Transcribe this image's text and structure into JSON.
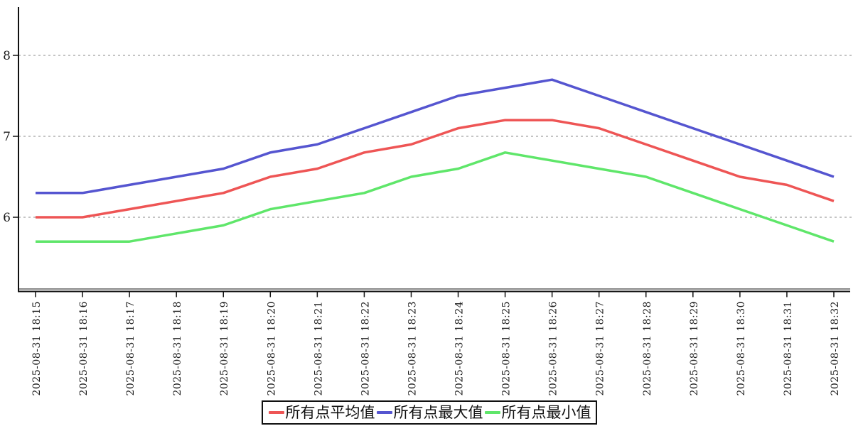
{
  "chart_data": {
    "type": "line",
    "title": "",
    "xlabel": "",
    "ylabel": "",
    "x_categories": [
      "2025-08-31 18:15",
      "2025-08-31 18:16",
      "2025-08-31 18:17",
      "2025-08-31 18:18",
      "2025-08-31 18:19",
      "2025-08-31 18:20",
      "2025-08-31 18:21",
      "2025-08-31 18:22",
      "2025-08-31 18:23",
      "2025-08-31 18:24",
      "2025-08-31 18:25",
      "2025-08-31 18:26",
      "2025-08-31 18:27",
      "2025-08-31 18:28",
      "2025-08-31 18:29",
      "2025-08-31 18:30",
      "2025-08-31 18:31",
      "2025-08-31 18:32"
    ],
    "series": [
      {
        "name": "所有点平均值",
        "color": "#ee5555",
        "values": [
          6.0,
          6.0,
          6.1,
          6.2,
          6.3,
          6.5,
          6.6,
          6.8,
          6.9,
          7.1,
          7.2,
          7.2,
          7.1,
          6.9,
          6.7,
          6.5,
          6.4,
          6.2
        ]
      },
      {
        "name": "所有点最大值",
        "color": "#5555d0",
        "values": [
          6.3,
          6.3,
          6.4,
          6.5,
          6.6,
          6.8,
          6.9,
          7.1,
          7.3,
          7.5,
          7.6,
          7.7,
          7.5,
          7.3,
          7.1,
          6.9,
          6.7,
          6.5
        ]
      },
      {
        "name": "所有点最小值",
        "color": "#5fe66a",
        "values": [
          5.7,
          5.7,
          5.7,
          5.8,
          5.9,
          6.1,
          6.2,
          6.3,
          6.5,
          6.6,
          6.8,
          6.7,
          6.6,
          6.5,
          6.3,
          6.1,
          5.9,
          5.7
        ]
      }
    ],
    "y_ticks": [
      6,
      7,
      8
    ],
    "ylim": [
      5.1,
      8.6
    ],
    "grid": "horizontal-dashed",
    "legend_position": "bottom-center"
  },
  "colors": {
    "axis": "#111111",
    "grid": "#888888",
    "text": "#1a1a1a",
    "background": "#ffffff"
  }
}
